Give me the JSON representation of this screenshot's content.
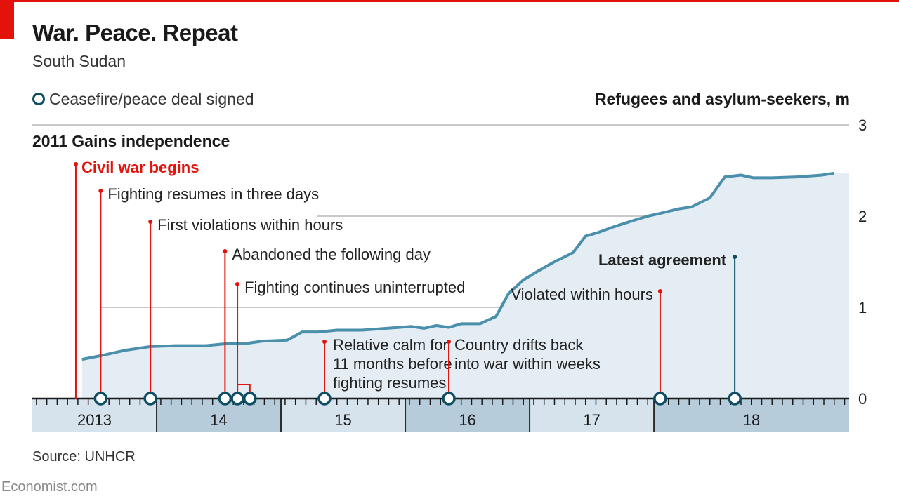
{
  "title": "War. Peace. Repeat",
  "subtitle": "South Sudan",
  "legend_label": "Ceasefire/peace deal signed",
  "ylabel": "Refugees and asylum-seekers, m",
  "source": "Source: UNHCR",
  "brand": "Economist.com",
  "colors": {
    "accent_red": "#e3120b",
    "line": "#4a8fab",
    "area": "#e3edf3",
    "marker": "#0e4d64",
    "timeline_dark": "#b6ccda",
    "timeline_light": "#d6e3ec",
    "grid": "#c9c9c9"
  },
  "chart_data": {
    "type": "area",
    "ylim": [
      0,
      3
    ],
    "yticks": [
      0,
      1,
      2,
      3
    ],
    "x_range": [
      "2013",
      "18"
    ],
    "year_labels": [
      "2013",
      "14",
      "15",
      "16",
      "17",
      "18"
    ],
    "grid": true,
    "series": [
      {
        "values": [
          [
            2013.95,
            0.43
          ],
          [
            2014.1,
            0.47
          ],
          [
            2014.3,
            0.53
          ],
          [
            2014.5,
            0.57
          ],
          [
            2014.7,
            0.58
          ],
          [
            2014.95,
            0.58
          ],
          [
            2015.1,
            0.6
          ],
          [
            2015.25,
            0.6
          ],
          [
            2015.4,
            0.63
          ],
          [
            2015.6,
            0.64
          ],
          [
            2015.72,
            0.73
          ],
          [
            2015.85,
            0.73
          ],
          [
            2016.0,
            0.75
          ],
          [
            2016.2,
            0.75
          ],
          [
            2016.3,
            0.76
          ],
          [
            2016.4,
            0.77
          ],
          [
            2016.5,
            0.78
          ],
          [
            2016.6,
            0.79
          ],
          [
            2016.7,
            0.77
          ],
          [
            2016.8,
            0.8
          ],
          [
            2016.9,
            0.78
          ],
          [
            2017.0,
            0.82
          ],
          [
            2017.15,
            0.82
          ],
          [
            2017.28,
            0.9
          ],
          [
            2017.38,
            1.15
          ],
          [
            2017.5,
            1.3
          ],
          [
            2017.62,
            1.4
          ],
          [
            2017.75,
            1.5
          ],
          [
            2017.9,
            1.6
          ],
          [
            2018.0,
            1.78
          ],
          [
            2018.1,
            1.82
          ],
          [
            2018.22,
            1.88
          ],
          [
            2018.38,
            1.95
          ],
          [
            2018.5,
            2.0
          ],
          [
            2018.6,
            2.03
          ],
          [
            2018.75,
            2.08
          ],
          [
            2018.85,
            2.1
          ],
          [
            2019.0,
            2.2
          ],
          [
            2019.12,
            2.43
          ],
          [
            2019.25,
            2.45
          ],
          [
            2019.35,
            2.42
          ],
          [
            2019.5,
            2.42
          ],
          [
            2019.7,
            2.43
          ],
          [
            2019.9,
            2.45
          ],
          [
            2020.0,
            2.47
          ]
        ]
      }
    ],
    "ceasefires": [
      2014.1,
      2014.5,
      2015.1,
      2015.2,
      2015.3,
      2015.9,
      2016.9,
      2018.6,
      2019.2
    ],
    "heading": "2011 Gains independence",
    "events": [
      {
        "x": 2013.9,
        "label": "Civil war begins",
        "highlight": true
      },
      {
        "x": 2014.1,
        "label": "Fighting resumes in three days"
      },
      {
        "x": 2014.5,
        "label": "First violations within hours"
      },
      {
        "x": 2015.1,
        "label": "Abandoned the following day"
      },
      {
        "x": 2015.2,
        "label": "Fighting continues uninterrupted"
      },
      {
        "x": 2015.9,
        "label": "Relative calm for 11 months before fighting resumes"
      },
      {
        "x": 2016.9,
        "label": "Country drifts back into war within weeks"
      },
      {
        "x": 2018.6,
        "label": "Violated within hours"
      },
      {
        "x": 2019.2,
        "label": "Latest agreement",
        "bold": true
      }
    ]
  }
}
